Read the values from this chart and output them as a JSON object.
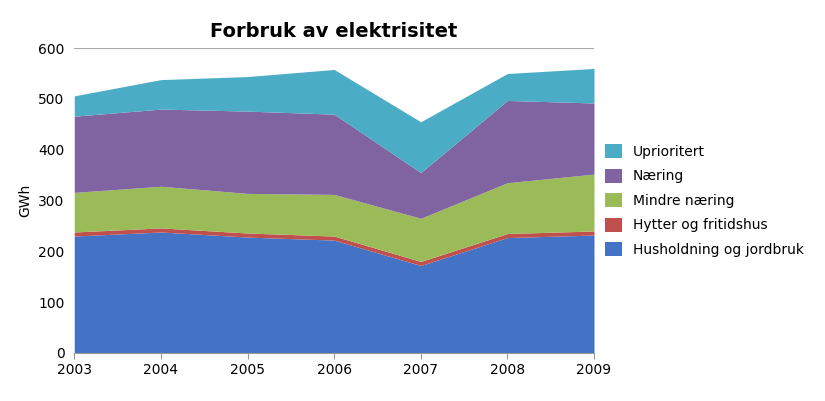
{
  "title": "Forbruk av elektrisitet",
  "xlabel": "",
  "ylabel": "GWh",
  "years": [
    2003,
    2004,
    2005,
    2006,
    2007,
    2008,
    2009
  ],
  "series": [
    {
      "label": "Husholdning og jordbruk",
      "values": [
        230,
        238,
        228,
        222,
        172,
        227,
        232
      ],
      "color": "#4472C4"
    },
    {
      "label": "Hytter og fritidshus",
      "values": [
        8,
        8,
        8,
        8,
        8,
        8,
        8
      ],
      "color": "#C0504D"
    },
    {
      "label": "Mindre næring",
      "values": [
        78,
        82,
        78,
        82,
        85,
        100,
        112
      ],
      "color": "#9BBB59"
    },
    {
      "label": "Næring",
      "values": [
        150,
        152,
        162,
        158,
        90,
        162,
        140
      ],
      "color": "#8064A2"
    },
    {
      "label": "Uprioritert",
      "values": [
        40,
        58,
        68,
        88,
        100,
        53,
        68
      ],
      "color": "#4BACC6"
    }
  ],
  "ylim": [
    0,
    600
  ],
  "yticks": [
    0,
    100,
    200,
    300,
    400,
    500,
    600
  ],
  "xlim": [
    2003,
    2009
  ],
  "title_fontsize": 14,
  "axis_fontsize": 10,
  "legend_fontsize": 10,
  "background_color": "#ffffff"
}
